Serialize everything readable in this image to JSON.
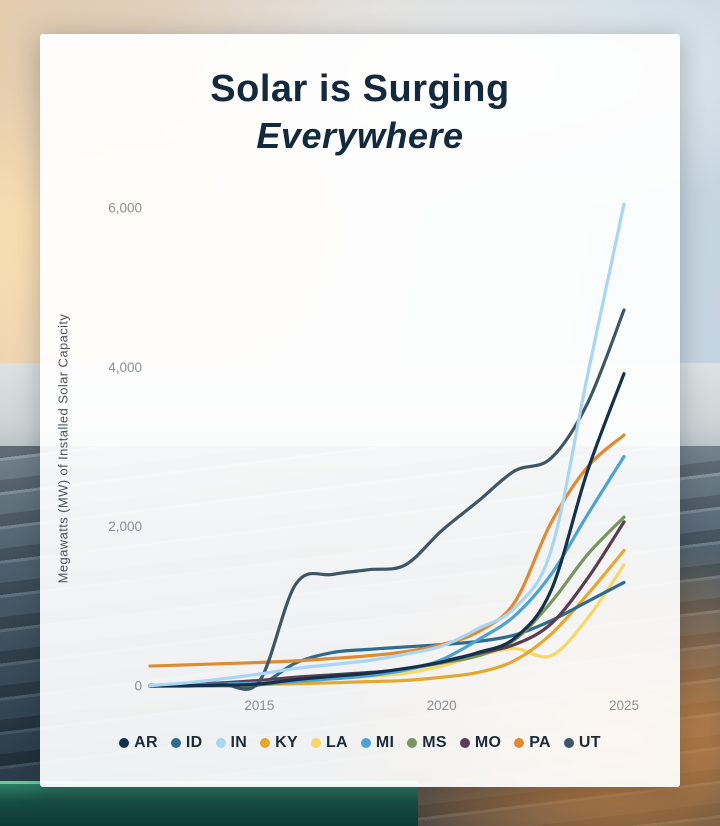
{
  "title": {
    "line1": "Solar is Surging",
    "line2": "Everywhere"
  },
  "chart_data": {
    "type": "line",
    "title": "Solar is Surging Everywhere",
    "xlabel": "",
    "ylabel": "Megawatts (MW) of Installed Solar Capacity",
    "x": [
      2012,
      2013,
      2014,
      2015,
      2016,
      2017,
      2018,
      2019,
      2020,
      2021,
      2022,
      2023,
      2024,
      2025
    ],
    "xticks": [
      2015,
      2020,
      2025
    ],
    "xtick_labels": [
      "2015",
      "2020",
      "2025"
    ],
    "ylim": [
      0,
      6000
    ],
    "yticks": [
      0,
      2000,
      4000,
      6000
    ],
    "ytick_labels": [
      "0",
      "2,000",
      "4,000",
      "6,000"
    ],
    "grid": false,
    "legend_position": "bottom",
    "series": [
      {
        "name": "AR",
        "color": "#14304a",
        "values": [
          0,
          5,
          10,
          25,
          80,
          120,
          160,
          220,
          300,
          420,
          600,
          1200,
          2700,
          3920
        ]
      },
      {
        "name": "ID",
        "color": "#2f6a8f",
        "values": [
          0,
          0,
          5,
          15,
          290,
          420,
          460,
          490,
          520,
          560,
          640,
          820,
          1060,
          1300
        ]
      },
      {
        "name": "IN",
        "color": "#a9d6f5",
        "values": [
          5,
          40,
          90,
          150,
          220,
          270,
          320,
          400,
          500,
          720,
          980,
          1700,
          3900,
          6050
        ]
      },
      {
        "name": "KY",
        "color": "#e3a82f",
        "values": [
          0,
          5,
          10,
          20,
          30,
          40,
          55,
          70,
          110,
          170,
          320,
          650,
          1150,
          1700
        ]
      },
      {
        "name": "LA",
        "color": "#f6d865",
        "values": [
          0,
          5,
          15,
          30,
          60,
          90,
          120,
          160,
          250,
          380,
          470,
          380,
          850,
          1520
        ]
      },
      {
        "name": "MI",
        "color": "#4ba3d3",
        "values": [
          5,
          15,
          25,
          40,
          60,
          90,
          130,
          200,
          330,
          580,
          880,
          1400,
          2150,
          2880
        ]
      },
      {
        "name": "MS",
        "color": "#79955e",
        "values": [
          0,
          0,
          5,
          15,
          60,
          110,
          160,
          210,
          290,
          380,
          580,
          1050,
          1650,
          2120
        ]
      },
      {
        "name": "MO",
        "color": "#5a3d52",
        "values": [
          10,
          20,
          40,
          70,
          110,
          140,
          170,
          210,
          310,
          410,
          520,
          780,
          1350,
          2060
        ]
      },
      {
        "name": "PA",
        "color": "#e08b33",
        "values": [
          250,
          265,
          280,
          295,
          315,
          345,
          380,
          430,
          520,
          680,
          1050,
          2050,
          2750,
          3150
        ]
      },
      {
        "name": "UT",
        "color": "#3e5566",
        "values": [
          0,
          5,
          20,
          60,
          1280,
          1400,
          1460,
          1520,
          1950,
          2320,
          2700,
          2860,
          3550,
          4720
        ]
      }
    ],
    "z_order": [
      "LA",
      "KY",
      "ID",
      "MS",
      "MO",
      "MI",
      "PA",
      "UT",
      "AR",
      "IN"
    ]
  }
}
